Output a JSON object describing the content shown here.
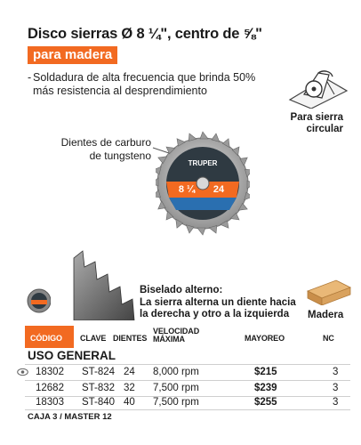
{
  "title": "Disco sierras Ø 8 ¼\", centro de ⅝\"",
  "subtitle": "para madera",
  "feature": {
    "bullet": "-",
    "text": "Soldadura de alta frecuencia que brinda 50% más resistencia al desprendimiento"
  },
  "usage": {
    "icon": "circular-saw-icon",
    "label": "Para sierra circular"
  },
  "callout_teeth": "Dientes de carburo de tungsteno",
  "blade": {
    "brand": "TRUPER",
    "size": "8 ¼",
    "teeth": "24",
    "icon": "saw-blade-icon"
  },
  "bevel": {
    "title": "Biselado alterno:",
    "description": "La sierra alterna un diente hacia la derecha y otro a la izquierda"
  },
  "material": {
    "icon": "wood-plank-icon",
    "label": "Madera"
  },
  "table": {
    "headers": {
      "code": "CÓDIGO",
      "key": "CLAVE",
      "teeth": "DIENTES",
      "speed": "VELOCIDAD MÁXIMA",
      "price": "MAYOREO",
      "nc": "NC"
    },
    "section": "USO GENERAL",
    "rows": [
      {
        "code": "18302",
        "key": "ST-824",
        "teeth": "24",
        "speed": "8,000 rpm",
        "price": "$215",
        "nc": "3"
      },
      {
        "code": "12682",
        "key": "ST-832",
        "teeth": "32",
        "speed": "7,500 rpm",
        "price": "$239",
        "nc": "3"
      },
      {
        "code": "18303",
        "key": "ST-840",
        "teeth": "40",
        "speed": "7,500 rpm",
        "price": "$255",
        "nc": "3"
      }
    ]
  },
  "footer": "CAJA 3 / MASTER 12",
  "colors": {
    "accent": "#f26a21",
    "text": "#1a1a1a"
  }
}
